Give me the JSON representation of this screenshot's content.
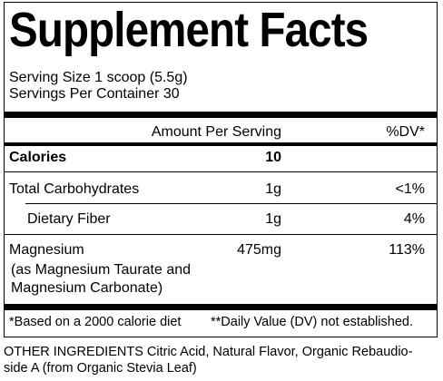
{
  "header": {
    "title": "Supplement Facts",
    "serving_size": "Serving Size 1 scoop (5.5g)",
    "servings_per_container": "Servings Per Container 30"
  },
  "table": {
    "columns": [
      "Amount Per Serving",
      "%DV*"
    ],
    "rows": [
      {
        "name": "Calories",
        "amount": "10",
        "dv": null
      },
      {
        "name": "Total Carbohydrates",
        "amount": "1g",
        "dv": "<1%"
      },
      {
        "name": "Dietary Fiber",
        "amount": "1g",
        "dv": "4%"
      },
      {
        "name": "Magnesium",
        "amount": "475mg",
        "dv": "113%",
        "detail": [
          "(as Magnesium Taurate and",
          "Magnesium Carbonate)"
        ]
      }
    ]
  },
  "footnotes": [
    "*Based on a 2000 calorie diet",
    "**Daily Value (DV) not established."
  ],
  "other_ingredients": [
    "OTHER INGREDIENTS Citric Acid, Natural Flavor, Organic Rebaudio-",
    "side A (from Organic Stevia Leaf)"
  ]
}
